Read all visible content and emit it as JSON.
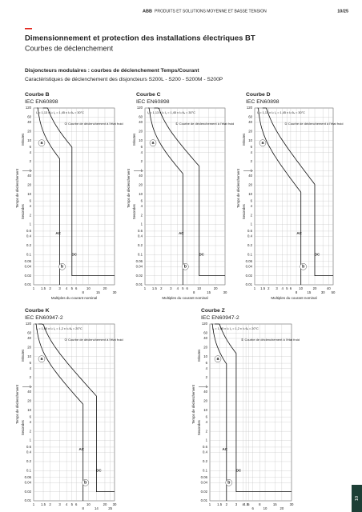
{
  "header": {
    "brand": "ABB",
    "title": "PRODUITS ET SOLUTIONS MOYENNE ET BASSE TENSION",
    "page": "10/25"
  },
  "heading": "Dimensionnement et protection des installations électriques BT",
  "subheading": "Courbes de déclenchement",
  "intro": {
    "title": "Disjoncteurs modulaires : courbes de déclenchement Temps/Courant",
    "text": "Caractéristiques de déclenchement des disjoncteurs S200L - S200 - S200M - S200P"
  },
  "charts": [
    {
      "title": "Courbe B",
      "standard": "IEC EN60898",
      "conditions": "I₁ = 1,13 x Iₙ   I₂ = 1,45 x Iₙ   θₐ = 30°C",
      "legend": "① Courbe de déclenchement à l'état froid",
      "x_label": "Multiples du courant nominal",
      "y_title": "Temps de déclenchement",
      "y_minutes": "Minutes",
      "y_seconds": "Secondes",
      "minute_ticks": [
        120,
        60,
        40,
        20,
        10,
        6,
        4,
        2,
        1
      ],
      "second_ticks": [
        40,
        20,
        10,
        6,
        4,
        2,
        1,
        0.6,
        0.4,
        0.2,
        0.1,
        0.06,
        0.04,
        0.02,
        0.01
      ],
      "x_ticks": [
        1,
        1.5,
        2,
        3,
        4,
        5,
        6,
        8,
        10,
        15,
        20,
        30
      ],
      "marks": [
        "a",
        "b",
        "AC",
        "DC"
      ]
    },
    {
      "title": "Courbe C",
      "standard": "IEC EN60898",
      "conditions": "I₁ = 1,13 x Iₙ   I₂ = 1,45 x Iₙ   θₐ = 30°C",
      "legend": "① Courbe de déclenchement à l'état froid",
      "x_label": "Multiples du courant nominal",
      "y_title": "Temps de déclenchement",
      "y_minutes": "Minutes",
      "y_seconds": "Secondes",
      "minute_ticks": [
        120,
        60,
        40,
        20,
        10,
        6,
        4,
        2,
        1
      ],
      "second_ticks": [
        40,
        20,
        10,
        6,
        4,
        2,
        1,
        0.6,
        0.4,
        0.2,
        0.1,
        0.06,
        0.04,
        0.02,
        0.01
      ],
      "x_ticks": [
        1,
        1.5,
        2,
        3,
        4,
        5,
        6,
        8,
        10,
        15,
        20,
        30
      ],
      "marks": [
        "a",
        "b",
        "AC",
        "DC"
      ]
    },
    {
      "title": "Courbe D",
      "standard": "IEC EN60898",
      "conditions": "I₁ = 1,13 x Iₙ   I₂ = 1,45 x Iₙ   θₐ = 30°C",
      "legend": "① Courbe de déclenchement à l'état froid",
      "x_label": "Multiples du courant nominal",
      "y_title": "Temps de déclenchement",
      "y_minutes": "Minutes",
      "y_seconds": "Secondes",
      "minute_ticks": [
        120,
        60,
        40,
        20,
        10,
        6,
        4,
        2,
        1
      ],
      "second_ticks": [
        40,
        20,
        10,
        6,
        4,
        2,
        1,
        0.6,
        0.4,
        0.2,
        0.1,
        0.06,
        0.04,
        0.02,
        0.01
      ],
      "x_ticks": [
        1,
        1.5,
        2,
        3,
        4,
        5,
        6,
        8,
        10,
        15,
        20,
        30,
        40,
        50
      ],
      "marks": [
        "a",
        "b",
        "AC",
        "DC"
      ]
    },
    {
      "title": "Courbe K",
      "standard": "IEC EN60947-2",
      "conditions": "I₁ = 1,05 x Iₙ   I₂ = 1,2 x Iₙ   θₐ = 20°C",
      "legend": "① Courbe de déclenchement à l'état froid",
      "x_label": "Multiples du courant nominal",
      "y_title": "Temps de déclenchement",
      "y_minutes": "Minutes",
      "y_seconds": "Secondes",
      "minute_ticks": [
        120,
        60,
        40,
        20,
        10,
        6,
        4,
        2,
        1
      ],
      "second_ticks": [
        40,
        20,
        10,
        6,
        4,
        2,
        1,
        0.6,
        0.4,
        0.2,
        0.1,
        0.06,
        0.04,
        0.02,
        0.01
      ],
      "x_ticks": [
        1,
        1.5,
        2,
        3,
        4,
        5,
        6,
        8,
        10,
        14,
        20,
        25,
        30
      ],
      "marks": [
        "a",
        "b",
        "AC",
        "DC"
      ]
    },
    {
      "title": "Courbe Z",
      "standard": "IEC EN60947-2",
      "conditions": "I₁ = 1,05 x Iₙ   I₂ = 1,2 x Iₙ   θₐ = 20°C",
      "legend": "① Courbe de déclenchement à l'état froid",
      "x_label": "Multiples du courant nominal",
      "y_title": "Temps de déclenchement",
      "y_minutes": "Minutes",
      "y_seconds": "Secondes",
      "minute_ticks": [
        120,
        60,
        40,
        20,
        10,
        6,
        4,
        2,
        1
      ],
      "second_ticks": [
        40,
        20,
        10,
        6,
        4,
        2,
        1,
        0.6,
        0.4,
        0.2,
        0.1,
        0.06,
        0.04,
        0.02,
        0.01
      ],
      "x_ticks": [
        1,
        1.5,
        2,
        3,
        4,
        4.5,
        5,
        6,
        8,
        10,
        15,
        20,
        30
      ],
      "marks": [
        "a",
        "b",
        "AC",
        "DC"
      ]
    }
  ],
  "side_tab": "10"
}
